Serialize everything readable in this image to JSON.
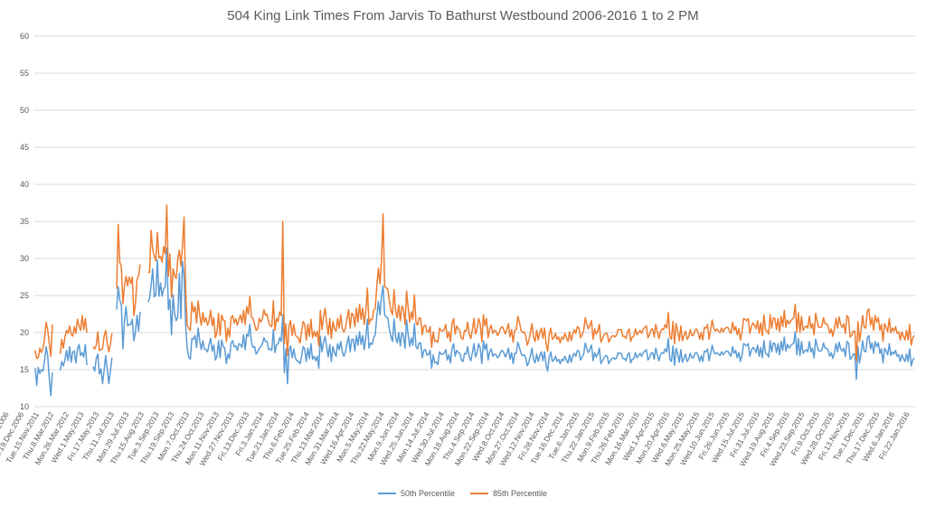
{
  "chart_data": {
    "type": "line",
    "title": "504 King Link Times From Jarvis To Bathurst Westbound 2006-2016 1 to 2 PM",
    "xlabel": "",
    "ylabel": "",
    "ylim": [
      10,
      60
    ],
    "yticks": [
      10,
      15,
      20,
      25,
      30,
      35,
      40,
      45,
      50,
      55,
      60
    ],
    "grid": true,
    "legend_position": "bottom",
    "x_tick_labels": [
      "Fri.1.Dec.2006",
      "Tue.19.Dec.2006",
      "Tue.15.Nov.2011",
      "Thu.8.Mar.2012",
      "Mon.26.Mar.2012",
      "Wed.1.May.2013",
      "Fri.17.May.2013",
      "Thu.11.Jul.2013",
      "Mon.29.Jul.2013",
      "Thu.15.Aug.2013",
      "Tue.3.Sep.2013",
      "Thu.19.Sep.2013",
      "Mon.7.Oct.2013",
      "Thu.24.Oct.2013",
      "Mon.11.Nov.2013",
      "Wed.27.Nov.2013",
      "Fri.13.Dec.2013",
      "Fri.3.Jan.2014",
      "Tue.21.Jan.2014",
      "Thu.6.Feb.2014",
      "Tue.25.Feb.2014",
      "Thu.13.Mar.2014",
      "Mon.31.Mar.2014",
      "Wed.16.Apr.2014",
      "Mon.5.May.2014",
      "Thu.22.May.2014",
      "Mon.9.Jun.2014",
      "Wed.25.Jun.2014",
      "Mon.14.Jul.2014",
      "Wed.30.Jul.2014",
      "Mon.18.Aug.2014",
      "Thu.4.Sep.2014",
      "Mon.22.Sep.2014",
      "Wed.8.Oct.2014",
      "Mon.27.Oct.2014",
      "Wed.12.Nov.2014",
      "Fri.28.Nov.2014",
      "Tue.16.Dec.2014",
      "Tue.6.Jan.2015",
      "Thu.22.Jan.2015",
      "Mon.9.Feb.2015",
      "Thu.26.Feb.2015",
      "Mon.16.Mar.2015",
      "Wed.1.Apr.2015",
      "Mon.20.Apr.2015",
      "Wed.6.May.2015",
      "Mon.25.May.2015",
      "Wed.10.Jun.2015",
      "Fri.26.Jun.2015",
      "Wed.15.Jul.2015",
      "Fri.31.Jul.2015",
      "Wed.19.Aug.2015",
      "Fri.4.Sep.2015",
      "Wed.23.Sep.2015",
      "Fri.9.Oct.2015",
      "Wed.28.Oct.2015",
      "Fri.13.Nov.2015",
      "Tue.1.Dec.2015",
      "Thu.17.Dec.2015",
      "Wed.6.Jan.2016",
      "Fri.22.Jan.2016"
    ],
    "series": [
      {
        "name": "50th Percentile",
        "color": "#5B9BD5",
        "values": [
          15.2,
          12.9,
          15.3,
          14.5,
          15,
          14.8,
          16.2,
          18.1,
          16.9,
          13.9,
          11.5,
          14.6,
          null,
          null,
          null,
          null,
          14.9,
          16.1,
          15.5,
          16.3,
          17.6,
          16.2,
          18.1,
          16,
          17.4,
          17.5,
          15.9,
          17.8,
          18.4,
          16.9,
          17.3,
          16.7,
          18.4,
          15.6,
          null,
          null,
          null,
          15.4,
          14.8,
          16.5,
          17.1,
          14.4,
          15.1,
          13.1,
          14.9,
          16.9,
          15.1,
          13.1,
          14.8,
          16.6,
          null,
          null,
          23.1,
          26.2,
          24.4,
          23.7,
          17.8,
          21.6,
          23.5,
          20.9,
          21.1,
          21.1,
          21.8,
          18.9,
          20.1,
          22.3,
          20.2,
          22.8,
          null,
          null,
          null,
          null,
          24.1,
          24.6,
          26.4,
          28.6,
          24.8,
          25.1,
          29.8,
          24.9,
          26.7,
          24.9,
          25.9,
          26.2,
          31.4,
          23.1,
          24.5,
          19.7,
          25.1,
          22.6,
          21.6,
          22.1,
          28,
          21.9,
          29.6,
          27.7,
          21.2,
          17.9,
          16.7,
          16.4,
          19.2,
          19.1,
          19.6,
          18,
          20.6,
          18.9,
          17.7,
          18.9,
          17.8,
          17.7,
          17.4,
          18.4,
          19.2,
          17.5,
          18.3,
          16.3,
          16.8,
          18.9,
          16.6,
          19,
          18.1,
          17.9,
          15.8,
          17.1,
          16.5,
          18.6,
          18.9,
          18.1,
          18.2,
          17.6,
          18.5,
          18.4,
          18,
          19.7,
          17.7,
          19.8,
          19.5,
          21.1,
          18.7,
          18,
          18.1,
          17.1,
          17.4,
          17.9,
          18.1,
          18.5,
          19.3,
          18.8,
          18.8,
          17.7,
          17.8,
          17.6,
          20.4,
          17.3,
          18.3,
          18.5,
          19.3,
          18.8,
          22.4,
          14.6,
          17.8,
          13.1,
          17.5,
          18.2,
          16.6,
          17.8,
          16.6,
          16.2,
          16.1,
          15.8,
          16.8,
          18.1,
          17.8,
          16.1,
          17.9,
          16.5,
          18.5,
          16.4,
          16.8,
          16.2,
          16.8,
          15.2,
          19.5,
          17.4,
          18.7,
          19.5,
          18.1,
          16.7,
          18.4,
          16.1,
          18.1,
          17.3,
          16.8,
          18.5,
          17.7,
          18.8,
          17.4,
          16.8,
          17.4,
          18.5,
          19.5,
          17.4,
          19.1,
          19.1,
          17.5,
          19.6,
          18.3,
          20.1,
          18.4,
          19.6,
          17.7,
          19.4,
          21.8,
          17.9,
          18.6,
          18.4,
          19.3,
          19.7,
          22.2,
          24.2,
          22.4,
          24.9,
          26.3,
          22.4,
          22.1,
          22,
          20.5,
          19.5,
          18.8,
          21.8,
          19.4,
          18.6,
          20,
          18.2,
          20,
          19.6,
          17.9,
          21.7,
          19.7,
          18.1,
          19.3,
          18.3,
          21.2,
          18.1,
          17.8,
          18.6,
          18.6,
          16.6,
          17.6,
          17.7,
          17,
          17,
          17.6,
          15.2,
          17,
          15.9,
          16,
          15.7,
          17.4,
          17.1,
          17.1,
          17.2,
          17.7,
          16.3,
          17,
          15.9,
          17.9,
          18.5,
          16.8,
          17.6,
          17.3,
          17.2,
          16.3,
          16.1,
          17.2,
          17.1,
          18.1,
          16.7,
          16.2,
          17.3,
          18.5,
          16.7,
          17.3,
          18.5,
          17.9,
          15.8,
          18.9,
          17.7,
          18.5,
          16.3,
          17.4,
          17.8,
          16.8,
          17.1,
          17,
          16.6,
          16.8,
          17.4,
          17.6,
          17.3,
          16.7,
          17.2,
          17.9,
          16.4,
          17.3,
          15.8,
          17.2,
          17.2,
          18.7,
          18,
          17.2,
          16.9,
          17,
          16.6,
          15.5,
          16,
          16.9,
          17.9,
          16.4,
          15.9,
          17.1,
          16.1,
          16.9,
          17.4,
          16.2,
          17.4,
          15.6,
          14.8,
          16.7,
          17.4,
          16.1,
          16.3,
          16.8,
          16.1,
          16.4,
          15.8,
          16.4,
          16.2,
          16.8,
          16.3,
          15.9,
          17,
          16,
          16.8,
          17.2,
          16.8,
          17.6,
          17.5,
          16.3,
          16.7,
          17.1,
          18.6,
          17.8,
          17.3,
          17.8,
          18.3,
          16.2,
          17.3,
          16.7,
          17.1,
          17.9,
          15.8,
          16.2,
          16.6,
          16.9,
          16.8,
          15.8,
          16.2,
          16.5,
          16.6,
          16.4,
          16.6,
          17.3,
          17.2,
          17.2,
          16.5,
          16.5,
          16.2,
          17,
          17.3,
          15.9,
          16.4,
          16.5,
          17.3,
          16.6,
          16.9,
          17.2,
          16.8,
          17.3,
          17.5,
          17.7,
          16.3,
          16.6,
          17.2,
          17.3,
          16.4,
          17.9,
          17,
          16.2,
          17,
          17.3,
          17.2,
          17.8,
          17.4,
          19.2,
          16.4,
          16.1,
          18.2,
          15.6,
          17.9,
          17.1,
          16,
          17.7,
          16,
          16.5,
          17.1,
          16.1,
          16.4,
          17.2,
          16.6,
          16.6,
          17.2,
          17.3,
          16.9,
          16.1,
          16.9,
          16.1,
          17.5,
          17.4,
          17.8,
          16.2,
          17.2,
          18.3,
          17.4,
          17.1,
          17.3,
          17.1,
          16.9,
          17.4,
          17,
          17.3,
          17.5,
          17.5,
          17.1,
          16.8,
          18.1,
          17.2,
          17.6,
          16.6,
          17.3,
          16.1,
          16.9,
          18.5,
          18.4,
          18.2,
          18.5,
          16.8,
          17.6,
          18,
          17.8,
          17.3,
          18.3,
          16.8,
          18,
          16.6,
          18.9,
          17.2,
          17.1,
          16.7,
          18.9,
          17.4,
          18.6,
          18.5,
          17.3,
          18.5,
          17,
          18.8,
          17.6,
          19.4,
          17.5,
          18.4,
          17.9,
          18.2,
          18.4,
          18.6,
          20.1,
          17,
          19.2,
          16.9,
          18.8,
          17.2,
          17.5,
          17.7,
          17.4,
          18.8,
          17.4,
          17.9,
          16.6,
          19.1,
          18.2,
          17.5,
          17.5,
          17.6,
          18.6,
          17.9,
          17.9,
          17.6,
          16.8,
          17.3,
          16.5,
          17.3,
          18.5,
          17.4,
          18.7,
          17.8,
          17.5,
          17.9,
          16.8,
          18.8,
          18.6,
          16.4,
          16.6,
          17.1,
          17.1,
          13.7,
          18.1,
          15.9,
          17.2,
          18.9,
          17.5,
          17.4,
          19.3,
          19.6,
          17.8,
          18.6,
          17.2,
          18.8,
          18.1,
          18.6,
          17.2,
          17.8,
          15.9,
          17.9,
          17.5,
          17,
          18.5,
          16.9,
          17.4,
          17.1,
          17.6,
          16.8,
          17,
          16.1,
          17,
          16.5,
          16.1,
          17.1,
          16.1,
          17.8,
          15.5,
          16.3,
          16.6
        ]
      },
      {
        "name": "85th Percentile",
        "color": "#ED7D31",
        "values": [
          17.6,
          16.5,
          16.6,
          17.9,
          17.3,
          17.9,
          19.1,
          21.4,
          20.4,
          18.6,
          16.8,
          21.1,
          null,
          null,
          null,
          null,
          17.1,
          19.1,
          17.9,
          19.4,
          20.3,
          19.9,
          20.9,
          19.8,
          19.5,
          20.8,
          19.9,
          21.8,
          20.9,
          20.3,
          22.3,
          20.4,
          21.9,
          20,
          null,
          null,
          null,
          18.1,
          17.8,
          18.3,
          20.1,
          17.6,
          17.7,
          17.8,
          19.5,
          20.3,
          18.6,
          17.4,
          18.4,
          19.9,
          null,
          null,
          25.9,
          34.6,
          29.5,
          28.9,
          23.9,
          26.3,
          27.6,
          26.3,
          27.5,
          26.6,
          27.5,
          22.3,
          23.9,
          27.2,
          27.6,
          29.2,
          null,
          null,
          null,
          null,
          28.2,
          28.1,
          33.8,
          31.2,
          30.3,
          29.7,
          33.5,
          30.1,
          30.3,
          29.5,
          31.6,
          30.6,
          37.2,
          27.6,
          30.6,
          24.8,
          28.6,
          27.7,
          27.3,
          30,
          31.1,
          29,
          31.7,
          35.6,
          26.1,
          21,
          20.6,
          20.3,
          24.1,
          22.8,
          23.5,
          21.3,
          24.3,
          22.4,
          21,
          22.7,
          21.4,
          22,
          21,
          21.6,
          23,
          20.9,
          22,
          19.3,
          20,
          22.6,
          19.6,
          22.4,
          21.7,
          21.6,
          18.8,
          20.6,
          19.4,
          22,
          22.3,
          21.3,
          21.9,
          21,
          21.7,
          22.4,
          21.3,
          23,
          21.1,
          23.5,
          22.5,
          24.9,
          22.1,
          21.9,
          21.1,
          20.3,
          20.5,
          21.9,
          21.4,
          21.9,
          23.1,
          22.3,
          22.5,
          21.4,
          20.9,
          20.8,
          24.3,
          20.3,
          21.9,
          21.5,
          22.8,
          22.3,
          35,
          18.5,
          21.2,
          16.9,
          20.9,
          21.6,
          19.6,
          21.1,
          19.7,
          19.4,
          19.3,
          18.6,
          20.1,
          21.5,
          21.1,
          19,
          21.1,
          19.5,
          21.8,
          19.3,
          20.2,
          19.5,
          20.2,
          18.2,
          23,
          20.4,
          22.1,
          23.3,
          21.4,
          19.7,
          21.9,
          19.2,
          21.5,
          20.5,
          20.2,
          21.9,
          20.6,
          22.4,
          20.5,
          20.1,
          20.6,
          21.9,
          23.1,
          20.6,
          22.6,
          22.4,
          20.8,
          23.3,
          21.4,
          23.8,
          21.8,
          23.3,
          21.1,
          23,
          26,
          21.1,
          21.8,
          21.7,
          23,
          23.2,
          26.3,
          28.7,
          26.6,
          29.8,
          36,
          26.3,
          26,
          25.9,
          24.3,
          23,
          22.4,
          25.8,
          22.9,
          22,
          23.7,
          21.6,
          23.6,
          23.2,
          21.1,
          25.6,
          23.4,
          21.4,
          22.8,
          21.8,
          25.1,
          21.4,
          21,
          22,
          21.9,
          19.7,
          20.9,
          21,
          20.1,
          20.1,
          20.8,
          18,
          20.1,
          18.8,
          18.9,
          18.7,
          20.6,
          20.3,
          20.2,
          20.4,
          21.1,
          19.3,
          20.1,
          18.8,
          21.2,
          21.9,
          19.8,
          20.9,
          20.5,
          20.2,
          19.2,
          19.1,
          20.3,
          20.2,
          21.4,
          19.8,
          19.2,
          20.4,
          21.9,
          19.8,
          20.5,
          21.9,
          21.2,
          18.8,
          22.4,
          20.9,
          21.9,
          19.3,
          20.5,
          21,
          19.9,
          20.3,
          20.2,
          19.6,
          19.9,
          20.6,
          20.8,
          20.4,
          19.8,
          20.4,
          21.2,
          19.4,
          20.4,
          18.7,
          20.3,
          20.4,
          22.2,
          21.4,
          20.3,
          20,
          20.1,
          19.6,
          18.3,
          18.9,
          20,
          21.2,
          19.4,
          18.8,
          20.3,
          19,
          20,
          20.6,
          19.2,
          20.6,
          18.5,
          17.5,
          19.7,
          20.6,
          19.1,
          19.3,
          19.9,
          19.1,
          19.4,
          18.6,
          19.4,
          19.1,
          19.9,
          19.3,
          18.8,
          20.1,
          18.9,
          19.8,
          20.4,
          19.9,
          20.8,
          20.6,
          19.3,
          19.7,
          20.3,
          22,
          21.1,
          20.5,
          21,
          21.6,
          19.1,
          20.5,
          19.8,
          20.2,
          21.1,
          18.7,
          19.2,
          19.7,
          19.9,
          19.9,
          18.7,
          19.2,
          19.5,
          19.6,
          19.4,
          19.7,
          20.4,
          20.4,
          20.4,
          19.5,
          19.5,
          19.2,
          20.1,
          20.5,
          18.8,
          19.4,
          19.5,
          20.5,
          19.7,
          20,
          20.3,
          19.9,
          20.5,
          20.7,
          20.9,
          19.3,
          19.7,
          20.4,
          20.5,
          19.4,
          21.1,
          20.1,
          19.2,
          20.1,
          20.5,
          20.4,
          21.1,
          20.6,
          22.7,
          19.4,
          19.1,
          21.5,
          18.5,
          21.2,
          20.2,
          18.9,
          20.9,
          18.9,
          19.6,
          20.2,
          19.1,
          19.4,
          20.4,
          19.6,
          19.6,
          20.3,
          20.5,
          20,
          19.1,
          20,
          19,
          20.7,
          20.6,
          21.1,
          19.1,
          20.3,
          21.7,
          20.6,
          20.2,
          20.5,
          20.2,
          20,
          20.6,
          20.1,
          20.5,
          20.7,
          20.7,
          20.2,
          19.9,
          21.4,
          20.3,
          20.8,
          19.7,
          20.5,
          19,
          20,
          21.9,
          21.8,
          21.6,
          21.9,
          19.9,
          20.8,
          21.3,
          21,
          20.5,
          21.6,
          19.9,
          21.3,
          19.6,
          22.4,
          20.3,
          20.2,
          19.8,
          22.4,
          20.6,
          22,
          21.9,
          20.4,
          21.9,
          20.1,
          22.2,
          20.8,
          23,
          20.7,
          21.7,
          21.2,
          21.5,
          21.8,
          22,
          23.8,
          20.1,
          22.7,
          20,
          22.2,
          20.3,
          20.7,
          20.9,
          20.6,
          22.2,
          20.6,
          21.2,
          19.7,
          22.6,
          21.5,
          20.7,
          20.7,
          20.8,
          22,
          21.2,
          21.2,
          20.8,
          19.9,
          20.5,
          19.5,
          20.5,
          21.9,
          20.6,
          22.1,
          21.1,
          20.7,
          21.2,
          19.9,
          22.3,
          22,
          19.4,
          19.6,
          20.2,
          20.2,
          16.2,
          21.5,
          18.8,
          20.4,
          22.3,
          20.7,
          20.6,
          22.9,
          23.2,
          21,
          22,
          20.3,
          22.3,
          21.4,
          22,
          20.3,
          21.1,
          18.8,
          21.2,
          20.7,
          20.1,
          21.9,
          20,
          20.6,
          20.2,
          20.8,
          19.9,
          20.1,
          19,
          20.1,
          19.5,
          19,
          20.3,
          19,
          21.1,
          18.3,
          19.3,
          19.6
        ]
      }
    ]
  }
}
